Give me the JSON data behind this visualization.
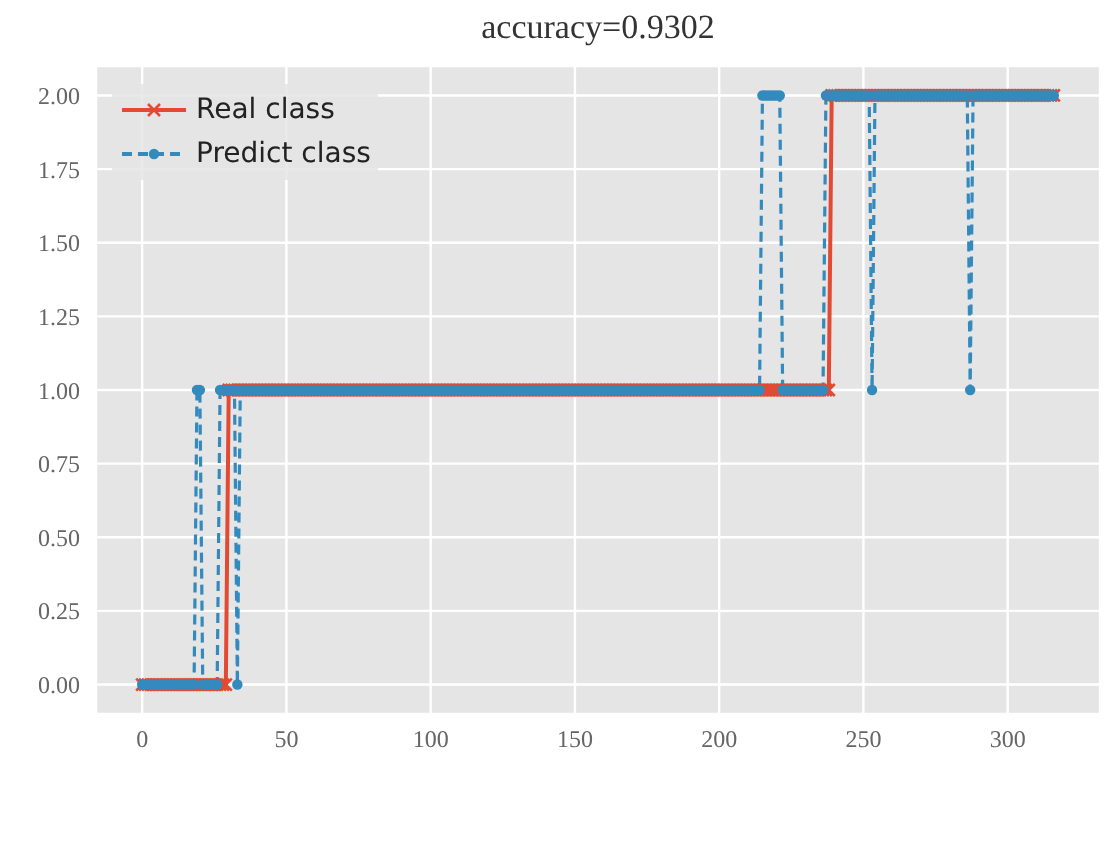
{
  "chart_data": {
    "type": "line",
    "title": "accuracy=0.9302",
    "x": [
      0,
      1,
      2,
      3,
      4,
      5,
      6,
      7,
      8,
      9,
      10,
      11,
      12,
      13,
      14,
      15,
      16,
      17,
      18,
      19,
      20,
      21,
      22,
      23,
      24,
      25,
      26,
      27,
      28,
      29,
      30,
      31,
      32,
      33,
      34,
      35,
      36,
      37,
      38,
      39,
      40,
      41,
      42,
      43,
      44,
      45,
      46,
      47,
      48,
      49,
      50,
      51,
      52,
      53,
      54,
      55,
      56,
      57,
      58,
      59,
      60,
      61,
      62,
      63,
      64,
      65,
      66,
      67,
      68,
      69,
      70,
      71,
      72,
      73,
      74,
      75,
      76,
      77,
      78,
      79,
      80,
      81,
      82,
      83,
      84,
      85,
      86,
      87,
      88,
      89,
      90,
      91,
      92,
      93,
      94,
      95,
      96,
      97,
      98,
      99,
      100,
      101,
      102,
      103,
      104,
      105,
      106,
      107,
      108,
      109,
      110,
      111,
      112,
      113,
      114,
      115,
      116,
      117,
      118,
      119,
      120,
      121,
      122,
      123,
      124,
      125,
      126,
      127,
      128,
      129,
      130,
      131,
      132,
      133,
      134,
      135,
      136,
      137,
      138,
      139,
      140,
      141,
      142,
      143,
      144,
      145,
      146,
      147,
      148,
      149,
      150,
      151,
      152,
      153,
      154,
      155,
      156,
      157,
      158,
      159,
      160,
      161,
      162,
      163,
      164,
      165,
      166,
      167,
      168,
      169,
      170,
      171,
      172,
      173,
      174,
      175,
      176,
      177,
      178,
      179,
      180,
      181,
      182,
      183,
      184,
      185,
      186,
      187,
      188,
      189,
      190,
      191,
      192,
      193,
      194,
      195,
      196,
      197,
      198,
      199,
      200,
      201,
      202,
      203,
      204,
      205,
      206,
      207,
      208,
      209,
      210,
      211,
      212,
      213,
      214,
      215,
      216,
      217,
      218,
      219,
      220,
      221,
      222,
      223,
      224,
      225,
      226,
      227,
      228,
      229,
      230,
      231,
      232,
      233,
      234,
      235,
      236,
      237,
      238,
      239,
      240,
      241,
      242,
      243,
      244,
      245,
      246,
      247,
      248,
      249,
      250,
      251,
      252,
      253,
      254,
      255,
      256,
      257,
      258,
      259,
      260,
      261,
      262,
      263,
      264,
      265,
      266,
      267,
      268,
      269,
      270,
      271,
      272,
      273,
      274,
      275,
      276,
      277,
      278,
      279,
      280,
      281,
      282,
      283,
      284,
      285,
      286,
      287,
      288,
      289,
      290,
      291,
      292,
      293,
      294,
      295,
      296,
      297,
      298,
      299,
      300,
      301,
      302,
      303,
      304,
      305,
      306,
      307,
      308,
      309,
      310,
      311,
      312,
      313,
      314,
      315,
      316
    ],
    "series": [
      {
        "name": "Real class",
        "color": "#e24a33",
        "marker": "cross",
        "line_style": "solid",
        "values": [
          0,
          0,
          0,
          0,
          0,
          0,
          0,
          0,
          0,
          0,
          0,
          0,
          0,
          0,
          0,
          0,
          0,
          0,
          0,
          0,
          0,
          0,
          0,
          0,
          0,
          0,
          0,
          0,
          0,
          0,
          1,
          1,
          1,
          1,
          1,
          1,
          1,
          1,
          1,
          1,
          1,
          1,
          1,
          1,
          1,
          1,
          1,
          1,
          1,
          1,
          1,
          1,
          1,
          1,
          1,
          1,
          1,
          1,
          1,
          1,
          1,
          1,
          1,
          1,
          1,
          1,
          1,
          1,
          1,
          1,
          1,
          1,
          1,
          1,
          1,
          1,
          1,
          1,
          1,
          1,
          1,
          1,
          1,
          1,
          1,
          1,
          1,
          1,
          1,
          1,
          1,
          1,
          1,
          1,
          1,
          1,
          1,
          1,
          1,
          1,
          1,
          1,
          1,
          1,
          1,
          1,
          1,
          1,
          1,
          1,
          1,
          1,
          1,
          1,
          1,
          1,
          1,
          1,
          1,
          1,
          1,
          1,
          1,
          1,
          1,
          1,
          1,
          1,
          1,
          1,
          1,
          1,
          1,
          1,
          1,
          1,
          1,
          1,
          1,
          1,
          1,
          1,
          1,
          1,
          1,
          1,
          1,
          1,
          1,
          1,
          1,
          1,
          1,
          1,
          1,
          1,
          1,
          1,
          1,
          1,
          1,
          1,
          1,
          1,
          1,
          1,
          1,
          1,
          1,
          1,
          1,
          1,
          1,
          1,
          1,
          1,
          1,
          1,
          1,
          1,
          1,
          1,
          1,
          1,
          1,
          1,
          1,
          1,
          1,
          1,
          1,
          1,
          1,
          1,
          1,
          1,
          1,
          1,
          1,
          1,
          1,
          1,
          1,
          1,
          1,
          1,
          1,
          1,
          1,
          1,
          1,
          1,
          1,
          1,
          1,
          1,
          1,
          1,
          1,
          1,
          1,
          1,
          1,
          1,
          1,
          1,
          1,
          1,
          1,
          1,
          1,
          1,
          1,
          1,
          1,
          1,
          1,
          1,
          1,
          2,
          2,
          2,
          2,
          2,
          2,
          2,
          2,
          2,
          2,
          2,
          2,
          2,
          2,
          2,
          2,
          2,
          2,
          2,
          2,
          2,
          2,
          2,
          2,
          2,
          2,
          2,
          2,
          2,
          2,
          2,
          2,
          2,
          2,
          2,
          2,
          2,
          2,
          2,
          2,
          2,
          2,
          2,
          2,
          2,
          2,
          2,
          2,
          2,
          2,
          2,
          2,
          2,
          2,
          2,
          2,
          2,
          2,
          2,
          2,
          2,
          2,
          2,
          2,
          2,
          2,
          2,
          2,
          2,
          2,
          2,
          2,
          2,
          2,
          2,
          2,
          2,
          2
        ]
      },
      {
        "name": "Predict class",
        "color": "#348abd",
        "marker": "circle",
        "line_style": "dashed",
        "values": [
          0,
          0,
          0,
          0,
          0,
          0,
          0,
          0,
          0,
          0,
          0,
          0,
          0,
          0,
          0,
          0,
          0,
          0,
          0,
          1,
          1,
          0,
          0,
          0,
          0,
          0,
          0,
          1,
          1,
          1,
          1,
          1,
          1,
          0,
          1,
          1,
          1,
          1,
          1,
          1,
          1,
          1,
          1,
          1,
          1,
          1,
          1,
          1,
          1,
          1,
          1,
          1,
          1,
          1,
          1,
          1,
          1,
          1,
          1,
          1,
          1,
          1,
          1,
          1,
          1,
          1,
          1,
          1,
          1,
          1,
          1,
          1,
          1,
          1,
          1,
          1,
          1,
          1,
          1,
          1,
          1,
          1,
          1,
          1,
          1,
          1,
          1,
          1,
          1,
          1,
          1,
          1,
          1,
          1,
          1,
          1,
          1,
          1,
          1,
          1,
          1,
          1,
          1,
          1,
          1,
          1,
          1,
          1,
          1,
          1,
          1,
          1,
          1,
          1,
          1,
          1,
          1,
          1,
          1,
          1,
          1,
          1,
          1,
          1,
          1,
          1,
          1,
          1,
          1,
          1,
          1,
          1,
          1,
          1,
          1,
          1,
          1,
          1,
          1,
          1,
          1,
          1,
          1,
          1,
          1,
          1,
          1,
          1,
          1,
          1,
          1,
          1,
          1,
          1,
          1,
          1,
          1,
          1,
          1,
          1,
          1,
          1,
          1,
          1,
          1,
          1,
          1,
          1,
          1,
          1,
          1,
          1,
          1,
          1,
          1,
          1,
          1,
          1,
          1,
          1,
          1,
          1,
          1,
          1,
          1,
          1,
          1,
          1,
          1,
          1,
          1,
          1,
          1,
          1,
          1,
          1,
          1,
          1,
          1,
          1,
          1,
          1,
          1,
          1,
          1,
          1,
          1,
          1,
          1,
          1,
          1,
          1,
          1,
          1,
          1,
          2,
          2,
          2,
          2,
          2,
          2,
          2,
          1,
          1,
          1,
          1,
          1,
          1,
          1,
          1,
          1,
          1,
          1,
          1,
          1,
          1,
          1,
          2,
          2,
          2,
          2,
          2,
          2,
          2,
          2,
          2,
          2,
          2,
          2,
          2,
          2,
          2,
          2,
          1,
          2,
          2,
          2,
          2,
          2,
          2,
          2,
          2,
          2,
          2,
          2,
          2,
          2,
          2,
          2,
          2,
          2,
          2,
          2,
          2,
          2,
          2,
          2,
          2,
          2,
          2,
          2,
          2,
          2,
          2,
          2,
          2,
          2,
          1,
          2,
          2,
          2,
          2,
          2,
          2,
          2,
          2,
          2,
          2,
          2,
          2,
          2,
          2,
          2,
          2,
          2,
          2,
          2,
          2,
          2,
          2,
          2,
          2,
          2,
          2,
          2,
          2,
          2
        ]
      }
    ],
    "xlim": [
      -16,
      332
    ],
    "xticks": [
      0,
      50,
      100,
      150,
      200,
      250,
      300
    ],
    "ylim": [
      -0.1,
      2.1
    ],
    "yticks": [
      {
        "value": 0,
        "label": "0.00"
      },
      {
        "value": 0.25,
        "label": "0.25"
      },
      {
        "value": 0.5,
        "label": "0.50"
      },
      {
        "value": 0.75,
        "label": "0.75"
      },
      {
        "value": 1,
        "label": "1.00"
      },
      {
        "value": 1.25,
        "label": "1.25"
      },
      {
        "value": 1.5,
        "label": "1.50"
      },
      {
        "value": 1.75,
        "label": "1.75"
      },
      {
        "value": 2,
        "label": "2.00"
      }
    ],
    "grid": true,
    "legend": "top left"
  }
}
